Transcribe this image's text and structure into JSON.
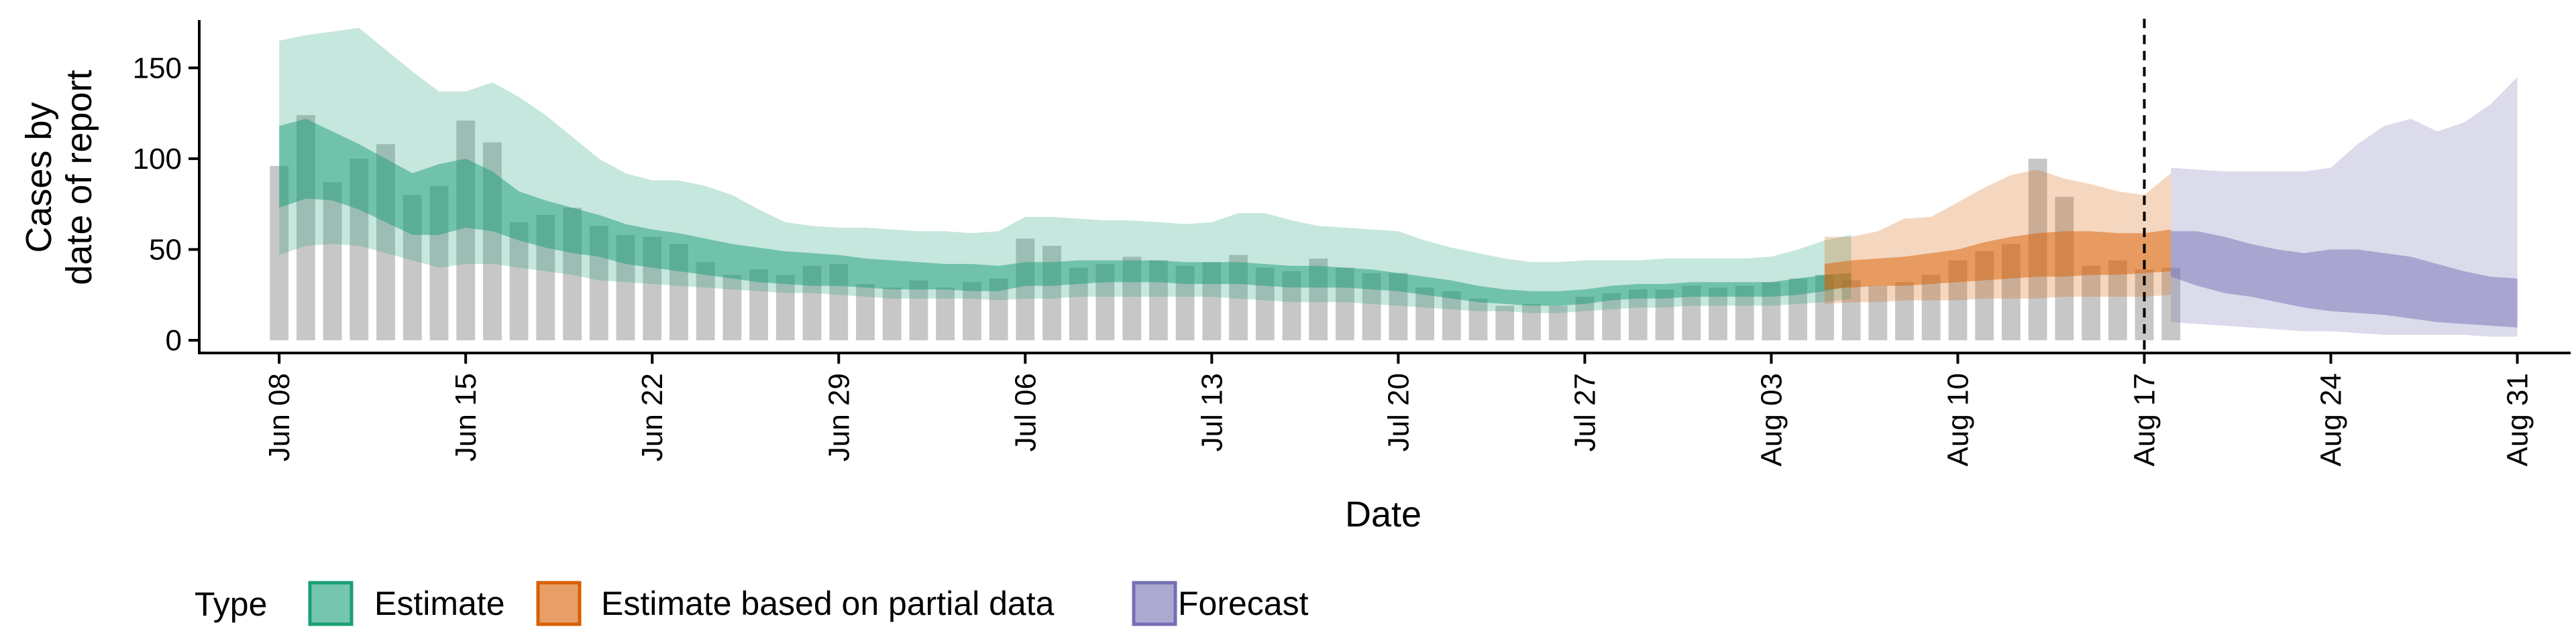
{
  "chart_data": {
    "type": "area",
    "xlabel": "Date",
    "ylabel_lines": [
      "Cases by",
      "date of report"
    ],
    "ylim": [
      -7,
      180
    ],
    "yticks": [
      0,
      50,
      100,
      150
    ],
    "xlim": [
      "2020-06-05",
      "2020-09-02"
    ],
    "xticks": [
      {
        "date": "2020-06-08",
        "label": "Jun 08"
      },
      {
        "date": "2020-06-15",
        "label": "Jun 15"
      },
      {
        "date": "2020-06-22",
        "label": "Jun 22"
      },
      {
        "date": "2020-06-29",
        "label": "Jun 29"
      },
      {
        "date": "2020-07-06",
        "label": "Jul 06"
      },
      {
        "date": "2020-07-13",
        "label": "Jul 13"
      },
      {
        "date": "2020-07-20",
        "label": "Jul 20"
      },
      {
        "date": "2020-07-27",
        "label": "Jul 27"
      },
      {
        "date": "2020-08-03",
        "label": "Aug 03"
      },
      {
        "date": "2020-08-10",
        "label": "Aug 10"
      },
      {
        "date": "2020-08-17",
        "label": "Aug 17"
      },
      {
        "date": "2020-08-24",
        "label": "Aug 24"
      },
      {
        "date": "2020-08-31",
        "label": "Aug 31"
      }
    ],
    "vline_date": "2020-08-17",
    "bar_start_date": "2020-06-08",
    "bar_values": [
      96,
      124,
      87,
      100,
      108,
      80,
      85,
      121,
      109,
      65,
      69,
      73,
      63,
      58,
      57,
      53,
      43,
      36,
      39,
      36,
      41,
      42,
      31,
      29,
      33,
      29,
      32,
      34,
      56,
      52,
      40,
      42,
      46,
      44,
      41,
      43,
      47,
      40,
      38,
      45,
      40,
      37,
      37,
      29,
      27,
      23,
      19,
      20,
      19,
      24,
      26,
      28,
      28,
      30,
      29,
      30,
      32,
      34,
      36,
      33,
      30,
      32,
      36,
      44,
      49,
      53,
      100,
      79,
      41,
      44,
      39,
      40
    ],
    "series": [
      {
        "name": "Estimate",
        "start_date": "2020-06-08",
        "lower90": [
          47,
          52,
          53,
          52,
          48,
          44,
          40,
          42,
          42,
          40,
          38,
          36,
          33,
          32,
          31,
          30,
          29,
          28,
          27,
          26,
          26,
          25,
          24,
          23,
          23,
          23,
          23,
          22,
          23,
          23,
          24,
          24,
          24,
          24,
          24,
          24,
          23,
          22,
          21,
          21,
          21,
          20,
          19,
          18,
          17,
          16,
          16,
          15,
          15,
          16,
          17,
          18,
          18,
          19,
          19,
          19,
          19,
          20,
          21,
          23
        ],
        "lower50": [
          73,
          78,
          77,
          72,
          65,
          58,
          58,
          62,
          60,
          55,
          51,
          48,
          46,
          42,
          40,
          38,
          36,
          34,
          32,
          31,
          30,
          30,
          29,
          28,
          28,
          28,
          27,
          27,
          30,
          30,
          31,
          32,
          32,
          32,
          31,
          31,
          31,
          30,
          29,
          29,
          29,
          28,
          27,
          25,
          23,
          21,
          20,
          19,
          19,
          20,
          22,
          23,
          23,
          24,
          24,
          24,
          24,
          25,
          27,
          30
        ],
        "upper50": [
          118,
          122,
          115,
          108,
          100,
          92,
          97,
          100,
          93,
          82,
          77,
          73,
          69,
          64,
          61,
          59,
          56,
          53,
          51,
          49,
          48,
          47,
          45,
          44,
          43,
          42,
          42,
          41,
          43,
          43,
          44,
          44,
          44,
          44,
          43,
          43,
          43,
          42,
          41,
          41,
          40,
          39,
          37,
          35,
          33,
          30,
          28,
          27,
          27,
          28,
          30,
          31,
          31,
          32,
          32,
          32,
          32,
          34,
          36,
          37
        ],
        "upper90": [
          165,
          168,
          170,
          172,
          160,
          148,
          137,
          137,
          142,
          134,
          124,
          112,
          100,
          92,
          88,
          88,
          85,
          80,
          72,
          65,
          63,
          62,
          62,
          61,
          60,
          60,
          59,
          60,
          68,
          68,
          67,
          66,
          66,
          65,
          64,
          65,
          70,
          70,
          66,
          63,
          62,
          61,
          60,
          55,
          51,
          48,
          45,
          43,
          43,
          44,
          44,
          44,
          45,
          45,
          45,
          45,
          46,
          50,
          55,
          58
        ]
      },
      {
        "name": "Estimate based on partial data",
        "start_date": "2020-08-05",
        "lower90": [
          20,
          21,
          21,
          22,
          22,
          22,
          23,
          23,
          23,
          24,
          24,
          24,
          24,
          25
        ],
        "lower50": [
          28,
          29,
          30,
          30,
          31,
          32,
          33,
          34,
          35,
          35,
          36,
          36,
          37,
          38
        ],
        "upper50": [
          42,
          44,
          45,
          46,
          48,
          50,
          54,
          57,
          59,
          60,
          60,
          59,
          59,
          61
        ],
        "upper90": [
          57,
          57,
          60,
          67,
          68,
          76,
          84,
          91,
          94,
          89,
          86,
          82,
          80,
          92
        ]
      },
      {
        "name": "Forecast",
        "start_date": "2020-08-18",
        "lower90": [
          10,
          9,
          8,
          7,
          6,
          5,
          5,
          4,
          3,
          3,
          3,
          3,
          2,
          2
        ],
        "lower50": [
          35,
          30,
          26,
          24,
          21,
          18,
          16,
          15,
          14,
          12,
          10,
          9,
          8,
          7
        ],
        "upper50": [
          60,
          60,
          57,
          53,
          50,
          48,
          50,
          50,
          48,
          46,
          42,
          38,
          35,
          34
        ],
        "upper90": [
          95,
          94,
          93,
          93,
          93,
          93,
          95,
          108,
          118,
          122,
          115,
          120,
          130,
          145
        ]
      }
    ],
    "colors": {
      "Estimate": "#1b9e77",
      "Estimate based on partial data": "#d95f02",
      "Forecast": "#7570b3",
      "bars": "#bdbdbd"
    },
    "legend": {
      "title": "Type",
      "placement": "bottom",
      "entries": [
        "Estimate",
        "Estimate based on partial data",
        "Forecast"
      ]
    },
    "grid": false
  }
}
